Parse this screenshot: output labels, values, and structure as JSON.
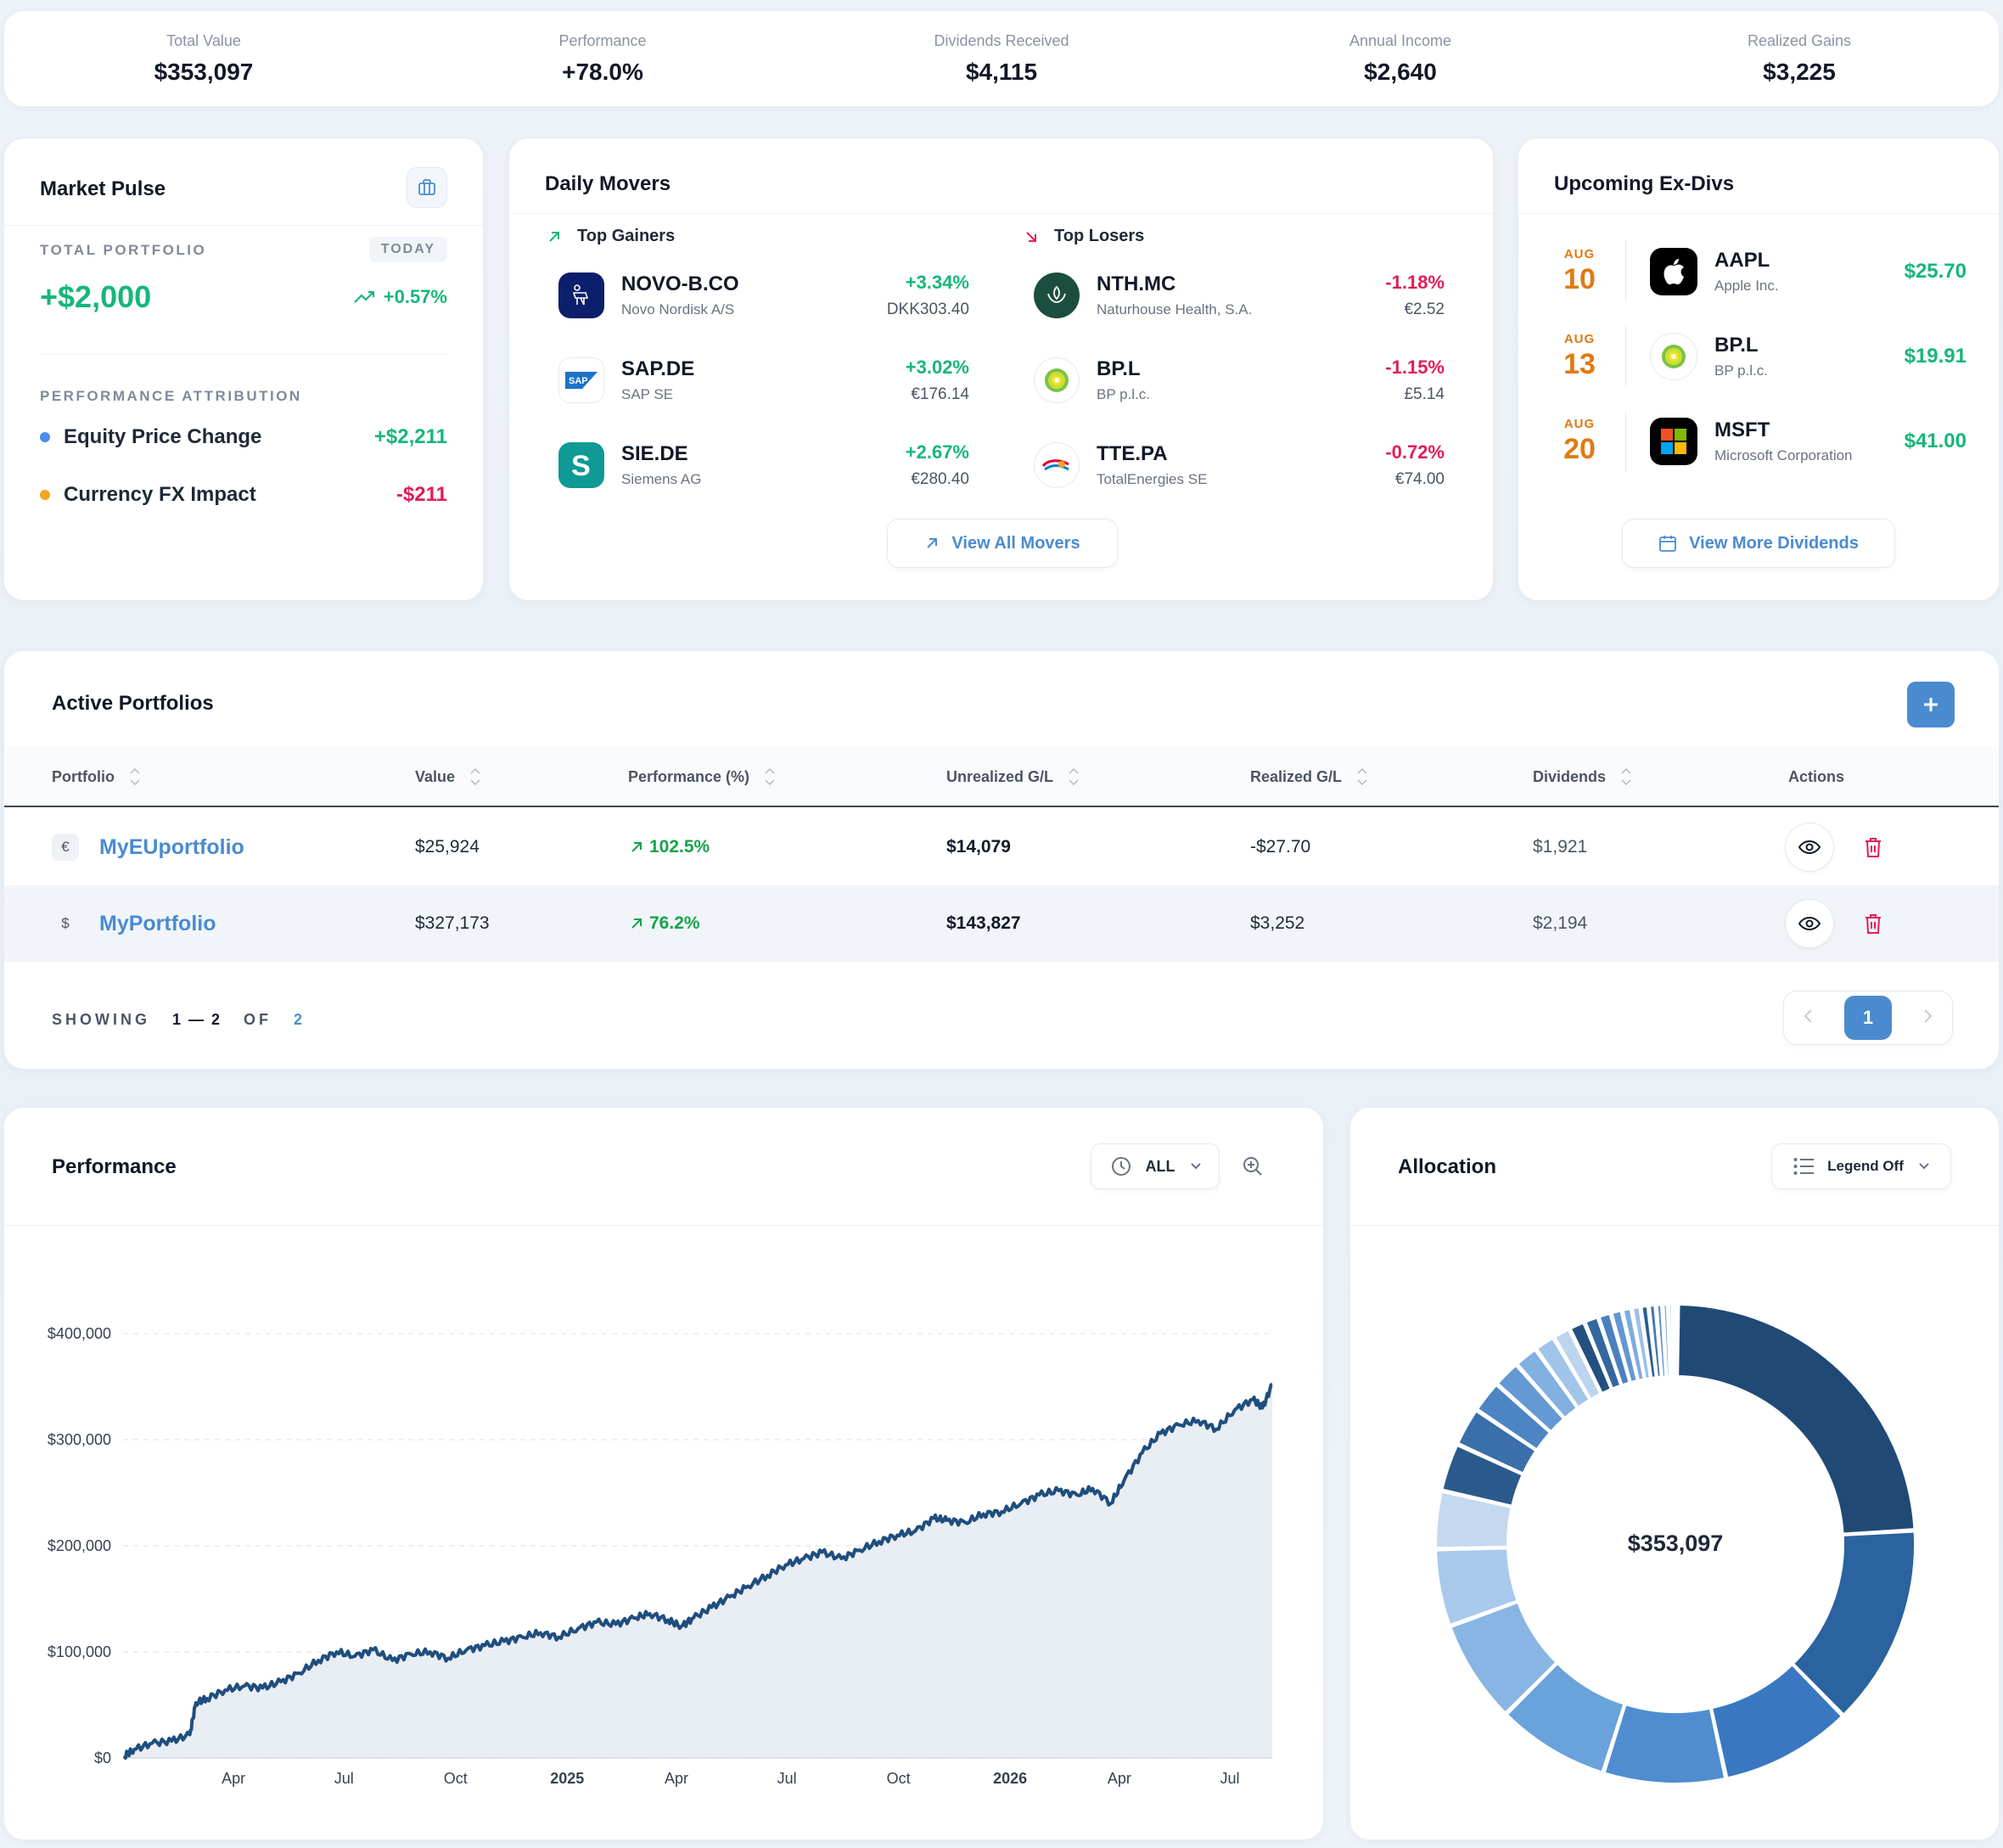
{
  "stats": [
    {
      "label": "Total Value",
      "value": "$353,097",
      "tone": "dark"
    },
    {
      "label": "Performance",
      "value": "+78.0%",
      "tone": "green"
    },
    {
      "label": "Dividends Received",
      "value": "$4,115",
      "tone": "dark"
    },
    {
      "label": "Annual Income",
      "value": "$2,640",
      "tone": "dark"
    },
    {
      "label": "Realized Gains",
      "value": "$3,225",
      "tone": "dark"
    }
  ],
  "pulse": {
    "title": "Market Pulse",
    "total_caption": "TOTAL PORTFOLIO",
    "today": "TODAY",
    "change_value": "+$2,000",
    "change_pct": "+0.57%",
    "attribution_caption": "PERFORMANCE ATTRIBUTION",
    "attribution": [
      {
        "name": "Equity Price Change",
        "value": "+$2,211",
        "dot": "#4a8bf0",
        "tone": "green"
      },
      {
        "name": "Currency FX Impact",
        "value": "-$211",
        "dot": "#f5a524",
        "tone": "red"
      }
    ]
  },
  "movers": {
    "title": "Daily Movers",
    "gainers_title": "Top Gainers",
    "losers_title": "Top Losers",
    "gainers": [
      {
        "symbol": "NOVO-B.CO",
        "name": "Novo Nordisk A/S",
        "pct": "+3.34%",
        "price": "DKK303.40",
        "logo": "novo-logo-icon"
      },
      {
        "symbol": "SAP.DE",
        "name": "SAP SE",
        "pct": "+3.02%",
        "price": "€176.14",
        "logo": "sap-logo-icon"
      },
      {
        "symbol": "SIE.DE",
        "name": "Siemens AG",
        "pct": "+2.67%",
        "price": "€280.40",
        "logo": "siemens-logo-icon"
      }
    ],
    "losers": [
      {
        "symbol": "NTH.MC",
        "name": "Naturhouse Health, S.A.",
        "pct": "-1.18%",
        "price": "€2.52",
        "logo": "naturhouse-logo-icon"
      },
      {
        "symbol": "BP.L",
        "name": "BP p.l.c.",
        "pct": "-1.15%",
        "price": "£5.14",
        "logo": "bp-logo-icon"
      },
      {
        "symbol": "TTE.PA",
        "name": "TotalEnergies SE",
        "pct": "-0.72%",
        "price": "€74.00",
        "logo": "totalenergies-logo-icon"
      }
    ],
    "view_all": "View All Movers"
  },
  "exdivs": {
    "title": "Upcoming Ex-Divs",
    "items": [
      {
        "month": "AUG",
        "day": "10",
        "symbol": "AAPL",
        "name": "Apple Inc.",
        "amount": "$25.70",
        "logo": "apple-logo-icon"
      },
      {
        "month": "AUG",
        "day": "13",
        "symbol": "BP.L",
        "name": "BP p.l.c.",
        "amount": "$19.91",
        "logo": "bp-logo-icon"
      },
      {
        "month": "AUG",
        "day": "20",
        "symbol": "MSFT",
        "name": "Microsoft Corporation",
        "amount": "$41.00",
        "logo": "microsoft-logo-icon"
      }
    ],
    "view_more": "View More Dividends"
  },
  "portfolios": {
    "title": "Active Portfolios",
    "columns": [
      "Portfolio",
      "Value",
      "Performance (%)",
      "Unrealized G/L",
      "Realized G/L",
      "Dividends",
      "Actions"
    ],
    "rows": [
      {
        "currency": "€",
        "name": "MyEUportfolio",
        "value": "$25,924",
        "performance": "102.5%",
        "unrealized": "$14,079",
        "realized": "-$27.70",
        "dividends": "$1,921"
      },
      {
        "currency": "$",
        "name": "MyPortfolio",
        "value": "$327,173",
        "performance": "76.2%",
        "unrealized": "$143,827",
        "realized": "$3,252",
        "dividends": "$2,194"
      }
    ],
    "showing_label": "SHOWING",
    "showing_range": "1 — 2",
    "showing_of": "OF",
    "showing_total": "2",
    "current_page": "1"
  },
  "performance": {
    "title": "Performance",
    "range_label": "ALL"
  },
  "chart_data": {
    "type": "area",
    "title": "",
    "xlabel": "",
    "ylabel": "",
    "ylim": [
      0,
      400000
    ],
    "y_ticks": [
      "$0",
      "$100,000",
      "$200,000",
      "$300,000",
      "$400,000"
    ],
    "y_tick_values": [
      0,
      100000,
      200000,
      300000,
      400000
    ],
    "x_ticks": [
      {
        "label": "Apr",
        "bold": false,
        "date": "2024-04-01"
      },
      {
        "label": "Jul",
        "bold": false,
        "date": "2024-07-01"
      },
      {
        "label": "Oct",
        "bold": false,
        "date": "2024-10-01"
      },
      {
        "label": "2025",
        "bold": true,
        "date": "2025-01-01"
      },
      {
        "label": "Apr",
        "bold": false,
        "date": "2025-04-01"
      },
      {
        "label": "Jul",
        "bold": false,
        "date": "2025-07-01"
      },
      {
        "label": "Oct",
        "bold": false,
        "date": "2025-10-01"
      },
      {
        "label": "2026",
        "bold": true,
        "date": "2026-01-01"
      },
      {
        "label": "Apr",
        "bold": false,
        "date": "2026-04-01"
      },
      {
        "label": "Jul",
        "bold": false,
        "date": "2026-07-01"
      }
    ],
    "grid": true,
    "series": [
      {
        "color": "#1f4e7e",
        "points": [
          [
            "2024-01-02",
            2000
          ],
          [
            "2024-01-10",
            8000
          ],
          [
            "2024-01-25",
            14000
          ],
          [
            "2024-02-10",
            16000
          ],
          [
            "2024-02-25",
            22000
          ],
          [
            "2024-03-01",
            52000
          ],
          [
            "2024-03-10",
            56000
          ],
          [
            "2024-03-25",
            64000
          ],
          [
            "2024-04-10",
            68000
          ],
          [
            "2024-04-25",
            66000
          ],
          [
            "2024-05-10",
            72000
          ],
          [
            "2024-05-25",
            80000
          ],
          [
            "2024-06-10",
            92000
          ],
          [
            "2024-06-25",
            100000
          ],
          [
            "2024-07-10",
            96000
          ],
          [
            "2024-07-25",
            102000
          ],
          [
            "2024-08-10",
            92000
          ],
          [
            "2024-08-25",
            98000
          ],
          [
            "2024-09-10",
            100000
          ],
          [
            "2024-09-25",
            94000
          ],
          [
            "2024-10-10",
            102000
          ],
          [
            "2024-10-25",
            106000
          ],
          [
            "2024-11-10",
            110000
          ],
          [
            "2024-11-25",
            114000
          ],
          [
            "2024-12-10",
            118000
          ],
          [
            "2024-12-25",
            114000
          ],
          [
            "2025-01-10",
            122000
          ],
          [
            "2025-01-25",
            128000
          ],
          [
            "2025-02-10",
            126000
          ],
          [
            "2025-02-25",
            132000
          ],
          [
            "2025-03-10",
            136000
          ],
          [
            "2025-03-25",
            130000
          ],
          [
            "2025-04-05",
            124000
          ],
          [
            "2025-04-15",
            132000
          ],
          [
            "2025-04-30",
            142000
          ],
          [
            "2025-05-15",
            152000
          ],
          [
            "2025-05-30",
            162000
          ],
          [
            "2025-06-15",
            172000
          ],
          [
            "2025-06-30",
            182000
          ],
          [
            "2025-07-15",
            188000
          ],
          [
            "2025-07-30",
            194000
          ],
          [
            "2025-08-15",
            188000
          ],
          [
            "2025-08-30",
            196000
          ],
          [
            "2025-09-15",
            204000
          ],
          [
            "2025-09-30",
            210000
          ],
          [
            "2025-10-15",
            214000
          ],
          [
            "2025-10-30",
            226000
          ],
          [
            "2025-11-10",
            224000
          ],
          [
            "2025-11-25",
            222000
          ],
          [
            "2025-12-10",
            230000
          ],
          [
            "2025-12-25",
            232000
          ],
          [
            "2026-01-10",
            240000
          ],
          [
            "2026-01-25",
            248000
          ],
          [
            "2026-02-10",
            252000
          ],
          [
            "2026-02-25",
            248000
          ],
          [
            "2026-03-10",
            254000
          ],
          [
            "2026-03-25",
            240000
          ],
          [
            "2026-04-05",
            262000
          ],
          [
            "2026-04-20",
            288000
          ],
          [
            "2026-05-05",
            306000
          ],
          [
            "2026-05-20",
            314000
          ],
          [
            "2026-06-05",
            318000
          ],
          [
            "2026-06-20",
            310000
          ],
          [
            "2026-07-05",
            328000
          ],
          [
            "2026-07-20",
            338000
          ],
          [
            "2026-07-28",
            330000
          ],
          [
            "2026-08-05",
            352000
          ]
        ]
      }
    ]
  },
  "allocation": {
    "title": "Allocation",
    "legend_label": "Legend Off",
    "center_value": "$353,097",
    "chart_data": {
      "type": "pie",
      "slices": [
        {
          "value": 22.0,
          "color": "#204a75"
        },
        {
          "value": 12.5,
          "color": "#2b62a0"
        },
        {
          "value": 8.2,
          "color": "#3978c0"
        },
        {
          "value": 7.6,
          "color": "#4f8dd0"
        },
        {
          "value": 7.0,
          "color": "#6aa2db"
        },
        {
          "value": 6.4,
          "color": "#88b5e3"
        },
        {
          "value": 4.8,
          "color": "#a8c9ec"
        },
        {
          "value": 3.6,
          "color": "#c4d9f0"
        },
        {
          "value": 3.0,
          "color": "#2a5a8c"
        },
        {
          "value": 2.4,
          "color": "#3a6fa9"
        },
        {
          "value": 2.0,
          "color": "#4c84c4"
        },
        {
          "value": 1.7,
          "color": "#6599d3"
        },
        {
          "value": 1.5,
          "color": "#82b0e0"
        },
        {
          "value": 1.3,
          "color": "#a1c4ea"
        },
        {
          "value": 1.1,
          "color": "#bcd5ef"
        },
        {
          "value": 1.0,
          "color": "#24507f"
        },
        {
          "value": 0.9,
          "color": "#33679e"
        },
        {
          "value": 0.8,
          "color": "#4a80bf"
        },
        {
          "value": 0.7,
          "color": "#6497d1"
        },
        {
          "value": 0.6,
          "color": "#7eacdd"
        },
        {
          "value": 0.55,
          "color": "#9bc0e8"
        },
        {
          "value": 0.5,
          "color": "#2c5d91"
        },
        {
          "value": 0.45,
          "color": "#4276b3"
        },
        {
          "value": 0.4,
          "color": "#5b8fcd"
        },
        {
          "value": 0.35,
          "color": "#78a8dc"
        },
        {
          "value": 0.3,
          "color": "#9dc1e8"
        }
      ]
    }
  }
}
